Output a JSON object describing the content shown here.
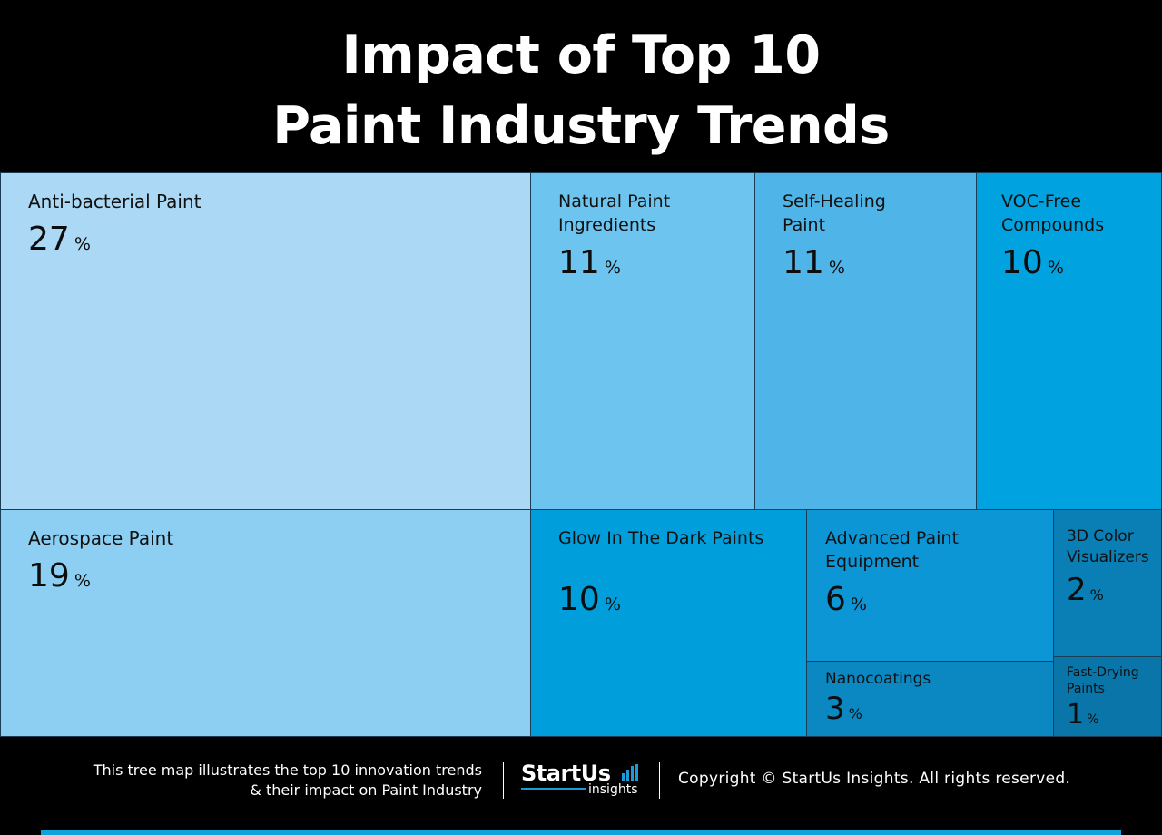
{
  "title": {
    "line1": "Impact of Top 10",
    "line2": "Paint Industry Trends"
  },
  "chart_data": {
    "type": "treemap",
    "unit": "%",
    "items": [
      {
        "label": "Anti-bacterial Paint",
        "value": 27,
        "color": "#aad8f5"
      },
      {
        "label": "Natural Paint Ingredients",
        "value": 11,
        "color": "#6cc4ef"
      },
      {
        "label": "Self-Healing Paint",
        "value": 11,
        "color": "#4fb5e8"
      },
      {
        "label": "VOC-Free Compounds",
        "value": 10,
        "color": "#00a3e0"
      },
      {
        "label": "Aerospace Paint",
        "value": 19,
        "color": "#8dcff3"
      },
      {
        "label": "Glow In The Dark Paints",
        "value": 10,
        "color": "#009fdc"
      },
      {
        "label": "Advanced Paint Equipment",
        "value": 6,
        "color": "#0d96d6"
      },
      {
        "label": "Nanocoatings",
        "value": 3,
        "color": "#0b87c2"
      },
      {
        "label": "3D Color Visualizers",
        "value": 2,
        "color": "#0a7fb6"
      },
      {
        "label": "Fast-Drying Paints",
        "value": 1,
        "color": "#0a75a8"
      }
    ]
  },
  "footer": {
    "description_line1": "This tree map illustrates the top 10 innovation trends",
    "description_line2": "& their impact on Paint Industry",
    "logo_brand": "StartUs",
    "logo_sub": "insights",
    "copyright": "Copyright © StartUs Insights. All rights reserved."
  },
  "colors": {
    "background": "#000000",
    "accent": "#0fa3dc",
    "text_light": "#ffffff"
  }
}
